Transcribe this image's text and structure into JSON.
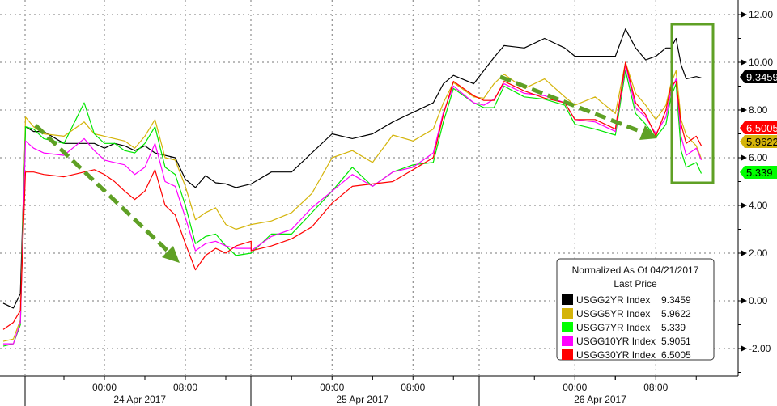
{
  "chart_data": {
    "type": "line",
    "title": "",
    "xlabel": "",
    "ylabel": "",
    "ylim": [
      -3.2,
      12.5
    ],
    "y_ticks": [
      -2,
      0,
      2,
      4,
      6,
      8,
      10,
      12
    ],
    "y_tick_labels": [
      "-2.00",
      "0.00",
      "2.00",
      "4.00",
      "6.00",
      "8.00",
      "10.00",
      "12.00"
    ],
    "y_axis_side": "right",
    "grid": true,
    "x_ticks": [
      {
        "label": "00:00",
        "time": "04-24 00:00"
      },
      {
        "label": "08:00",
        "time": "04-24 08:00"
      },
      {
        "label": "00:00",
        "time": "04-25 00:00"
      },
      {
        "label": "08:00",
        "time": "04-25 08:00"
      },
      {
        "label": "00:00",
        "time": "04-26 00:00"
      },
      {
        "label": "08:00",
        "time": "04-26 08:00"
      }
    ],
    "date_labels": [
      {
        "label": "24 Apr 2017",
        "time": "04-24 03:30"
      },
      {
        "label": "25 Apr 2017",
        "time": "04-25 03:00"
      },
      {
        "label": "26 Apr 2017",
        "time": "04-26 02:30"
      }
    ],
    "x": [
      "04-23 14:00",
      "04-23 15:00",
      "04-23 15:42",
      "04-23 16:12",
      "04-23 17:00",
      "04-23 18:00",
      "04-23 20:00",
      "04-23 22:00",
      "04-23 23:00",
      "04-24 00:00",
      "04-24 01:00",
      "04-24 02:00",
      "04-24 03:00",
      "04-24 04:00",
      "04-24 05:00",
      "04-24 06:00",
      "04-24 07:00",
      "04-24 08:00",
      "04-24 09:00",
      "04-24 10:00",
      "04-24 11:00",
      "04-24 12:00",
      "04-24 13:00",
      "04-24 14:30",
      "04-24 16:00",
      "04-24 18:00",
      "04-24 20:00",
      "04-24 22:00",
      "04-25 00:00",
      "04-25 02:00",
      "04-25 04:00",
      "04-25 06:00",
      "04-25 08:00",
      "04-25 10:00",
      "04-25 11:00",
      "04-25 12:00",
      "04-25 14:00",
      "04-25 15:00",
      "04-25 16:00",
      "04-25 17:00",
      "04-25 19:00",
      "04-25 21:00",
      "04-25 23:00",
      "04-26 00:00",
      "04-26 02:00",
      "04-26 04:00",
      "04-26 05:00",
      "04-26 06:00",
      "04-26 07:00",
      "04-26 08:00",
      "04-26 09:00",
      "04-26 09:30",
      "04-26 10:00",
      "04-26 10:30",
      "04-26 11:00",
      "04-26 12:00",
      "04-26 12:30"
    ],
    "series": [
      {
        "name": "USGG2YR Index",
        "color": "#000000",
        "last": "9.3459",
        "values": [
          -0.1,
          -0.3,
          0.3,
          7.3,
          7.1,
          7.1,
          6.6,
          6.6,
          6.6,
          6.4,
          6.6,
          6.5,
          6.3,
          6.5,
          6.2,
          6.1,
          6.0,
          5.1,
          4.75,
          5.25,
          4.95,
          4.9,
          4.75,
          4.9,
          4.9,
          5.4,
          5.4,
          6.2,
          7.0,
          6.8,
          7.0,
          7.5,
          7.9,
          8.3,
          9.1,
          9.45,
          9.1,
          9.65,
          10.2,
          10.7,
          10.6,
          11.0,
          10.6,
          10.25,
          10.25,
          10.25,
          11.4,
          10.6,
          10.1,
          10.25,
          10.6,
          10.6,
          11.0,
          9.9,
          9.3,
          9.4,
          9.3459
        ]
      },
      {
        "name": "USGG5YR Index",
        "color": "#d4b40a",
        "last": "5.9622",
        "values": [
          -1.7,
          -1.6,
          -0.8,
          7.7,
          7.3,
          7.0,
          6.9,
          7.5,
          7.0,
          6.9,
          6.8,
          6.7,
          6.4,
          6.9,
          7.6,
          6.0,
          5.9,
          4.8,
          3.4,
          3.7,
          3.9,
          3.2,
          3.0,
          3.2,
          3.2,
          3.35,
          3.7,
          4.5,
          6.0,
          6.3,
          5.8,
          6.95,
          6.7,
          7.2,
          8.3,
          9.15,
          8.55,
          8.5,
          9.1,
          9.5,
          8.9,
          9.3,
          8.55,
          8.2,
          8.55,
          7.85,
          10.0,
          8.7,
          8.2,
          7.6,
          8.2,
          9.1,
          9.65,
          7.6,
          6.95,
          6.5,
          5.9622
        ]
      },
      {
        "name": "USGG7YR Index",
        "color": "#00e600",
        "last": "5.339",
        "values": [
          -1.9,
          -1.8,
          -1.0,
          7.3,
          7.2,
          6.8,
          6.6,
          8.3,
          7.0,
          6.6,
          6.6,
          6.3,
          6.2,
          6.6,
          7.3,
          5.6,
          5.3,
          4.0,
          2.4,
          2.7,
          2.8,
          2.3,
          1.9,
          2.0,
          2.0,
          2.8,
          2.8,
          3.7,
          4.6,
          5.6,
          4.8,
          5.4,
          5.7,
          5.8,
          7.5,
          8.9,
          8.3,
          8.1,
          8.1,
          9.0,
          8.55,
          8.45,
          8.2,
          7.4,
          7.2,
          6.95,
          9.65,
          7.85,
          7.4,
          6.85,
          7.4,
          8.55,
          9.1,
          6.3,
          5.6,
          5.8,
          5.339
        ]
      },
      {
        "name": "USGG10YR Index",
        "color": "#ff00ff",
        "last": "5.9051",
        "values": [
          -1.8,
          -1.8,
          -0.9,
          6.7,
          6.4,
          6.2,
          6.1,
          6.8,
          6.3,
          5.9,
          5.8,
          5.7,
          5.3,
          5.6,
          6.6,
          5.0,
          4.8,
          3.5,
          2.1,
          2.4,
          2.5,
          2.3,
          2.2,
          2.2,
          2.1,
          2.7,
          3.0,
          3.9,
          4.6,
          5.3,
          4.8,
          5.4,
          5.6,
          6.2,
          7.9,
          9.0,
          8.3,
          8.2,
          8.45,
          9.1,
          8.7,
          8.6,
          8.3,
          7.6,
          7.5,
          7.1,
          9.9,
          8.1,
          7.7,
          7.0,
          7.7,
          8.8,
          9.3,
          6.9,
          6.1,
          6.4,
          5.9051
        ]
      },
      {
        "name": "USGG30YR Index",
        "color": "#ff0000",
        "last": "6.5005",
        "values": [
          -1.2,
          -0.9,
          -0.4,
          5.4,
          5.4,
          5.3,
          5.2,
          5.4,
          5.5,
          5.3,
          5.0,
          4.6,
          4.25,
          4.6,
          5.5,
          4.0,
          3.6,
          2.4,
          1.3,
          1.9,
          2.2,
          2.0,
          2.3,
          2.5,
          2.1,
          2.3,
          2.6,
          3.1,
          4.1,
          4.8,
          4.9,
          5.0,
          5.5,
          6.0,
          7.8,
          9.2,
          8.6,
          8.4,
          8.4,
          9.2,
          8.8,
          8.5,
          8.3,
          7.6,
          7.6,
          7.2,
          10.0,
          8.3,
          7.8,
          6.9,
          8.0,
          9.0,
          9.2,
          7.4,
          6.6,
          6.9,
          6.5005
        ]
      }
    ],
    "last_price_badges": [
      {
        "series": "USGG2YR Index",
        "label": "9.3459",
        "bg": "#000000",
        "fg": "#ffffff"
      },
      {
        "series": "USGG30YR Index",
        "label": "6.5005",
        "bg": "#ff0000",
        "fg": "#ffffff"
      },
      {
        "series": "USGG5YR Index",
        "label": "5.9622",
        "bg": "#d4b40a",
        "fg": "#000000"
      },
      {
        "series": "USGG7YR Index",
        "label": "5.339",
        "bg": "#00ff00",
        "fg": "#000000"
      }
    ],
    "legend": {
      "position": "bottom-right",
      "title": "Normalized As Of 04/21/2017",
      "subtitle": "Last Price",
      "entries": [
        {
          "name": "USGG2YR Index",
          "value": "9.3459",
          "color": "#000000"
        },
        {
          "name": "USGG5YR Index",
          "value": "5.9622",
          "color": "#d4b40a"
        },
        {
          "name": "USGG7YR Index",
          "value": "5.339",
          "color": "#00ff00"
        },
        {
          "name": "USGG10YR Index",
          "value": "5.9051",
          "color": "#ff00ff"
        },
        {
          "name": "USGG30YR Index",
          "value": "6.5005",
          "color": "#ff0000"
        }
      ]
    },
    "annotation_color": "#5fa025"
  }
}
